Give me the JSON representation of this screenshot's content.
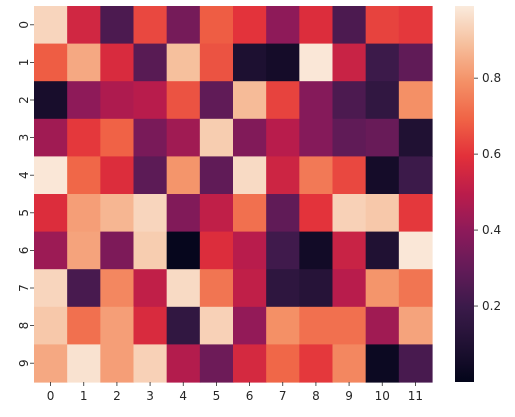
{
  "chart_data": {
    "type": "heatmap",
    "title": "",
    "xlabel": "",
    "ylabel": "",
    "x_categories": [
      "0",
      "1",
      "2",
      "3",
      "4",
      "5",
      "6",
      "7",
      "8",
      "9",
      "10",
      "11"
    ],
    "y_categories": [
      "0",
      "1",
      "2",
      "3",
      "4",
      "5",
      "6",
      "7",
      "8",
      "9"
    ],
    "values": [
      [
        0.94,
        0.55,
        0.24,
        0.64,
        0.34,
        0.68,
        0.6,
        0.4,
        0.58,
        0.24,
        0.63,
        0.61
      ],
      [
        0.68,
        0.84,
        0.57,
        0.27,
        0.89,
        0.66,
        0.09,
        0.06,
        0.98,
        0.53,
        0.2,
        0.29
      ],
      [
        0.07,
        0.4,
        0.47,
        0.49,
        0.66,
        0.29,
        0.88,
        0.63,
        0.38,
        0.24,
        0.16,
        0.79
      ],
      [
        0.44,
        0.61,
        0.69,
        0.35,
        0.44,
        0.92,
        0.37,
        0.49,
        0.38,
        0.29,
        0.31,
        0.1
      ],
      [
        0.98,
        0.7,
        0.58,
        0.28,
        0.8,
        0.29,
        0.95,
        0.54,
        0.74,
        0.64,
        0.06,
        0.2
      ],
      [
        0.58,
        0.82,
        0.87,
        0.94,
        0.37,
        0.51,
        0.72,
        0.29,
        0.6,
        0.93,
        0.91,
        0.61
      ],
      [
        0.43,
        0.83,
        0.36,
        0.92,
        0.01,
        0.58,
        0.49,
        0.21,
        0.05,
        0.53,
        0.1,
        0.98
      ],
      [
        0.94,
        0.23,
        0.77,
        0.51,
        0.95,
        0.73,
        0.51,
        0.15,
        0.12,
        0.49,
        0.8,
        0.73
      ],
      [
        0.91,
        0.72,
        0.82,
        0.57,
        0.16,
        0.93,
        0.41,
        0.79,
        0.72,
        0.72,
        0.44,
        0.83
      ],
      [
        0.84,
        0.97,
        0.82,
        0.93,
        0.48,
        0.32,
        0.56,
        0.7,
        0.61,
        0.77,
        0.03,
        0.23
      ]
    ],
    "colorbar": {
      "min": 0.0,
      "max": 0.99,
      "ticks": [
        0.2,
        0.4,
        0.6,
        0.8
      ],
      "tick_labels": [
        "0.2",
        "0.4",
        "0.6",
        "0.8"
      ],
      "colormap": "rocket"
    },
    "grid": false,
    "legend": "colorbar-right"
  }
}
